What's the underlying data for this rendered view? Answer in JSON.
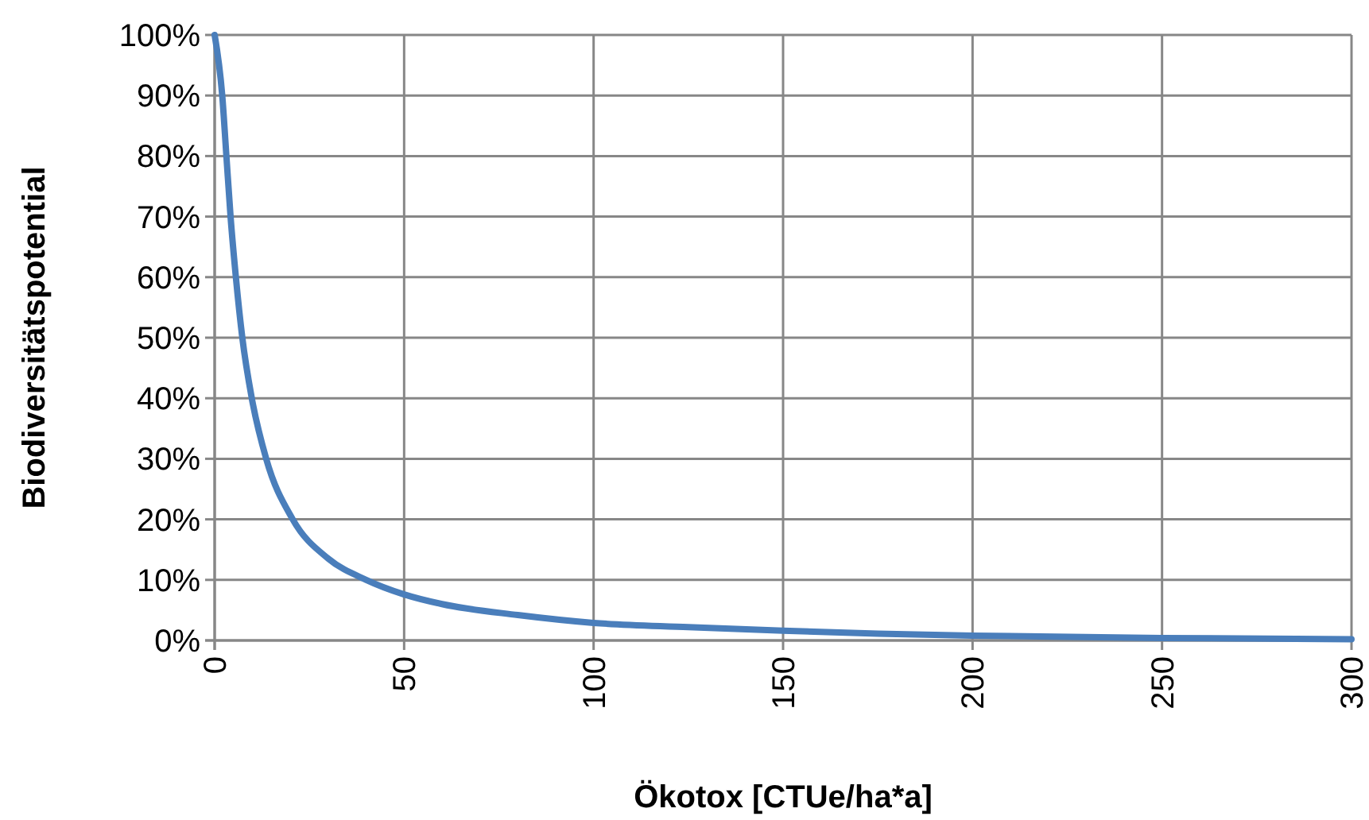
{
  "chart_data": {
    "type": "line",
    "xlabel": "Ökotox [CTUe/ha*a]",
    "ylabel": "Biodiversitätspotential",
    "x": [
      0,
      2,
      3.1,
      4.2,
      5.6,
      7.3,
      9.8,
      13.6,
      20.6,
      30,
      40,
      50,
      60,
      80,
      100,
      125,
      150,
      175,
      200,
      250,
      300
    ],
    "series": [
      {
        "color": "#4a7ebb",
        "values": [
          100,
          90,
          80,
          70,
          60,
          50,
          40,
          30,
          20,
          13.5,
          10,
          7.6,
          6,
          4.2,
          2.9,
          2.2,
          1.6,
          1.1,
          0.8,
          0.4,
          0.2
        ]
      }
    ],
    "xlim": [
      0,
      300
    ],
    "xticks": [
      0,
      50,
      100,
      150,
      200,
      250,
      300
    ],
    "ylim": [
      0,
      100
    ],
    "yticks": [
      {
        "value": 0,
        "label": "0%"
      },
      {
        "value": 10,
        "label": "10%"
      },
      {
        "value": 20,
        "label": "20%"
      },
      {
        "value": 30,
        "label": "30%"
      },
      {
        "value": 40,
        "label": "40%"
      },
      {
        "value": 50,
        "label": "50%"
      },
      {
        "value": 60,
        "label": "60%"
      },
      {
        "value": 70,
        "label": "70%"
      },
      {
        "value": 80,
        "label": "80%"
      },
      {
        "value": 90,
        "label": "90%"
      },
      {
        "value": 100,
        "label": "100%"
      }
    ],
    "grid": true,
    "marker": "none",
    "line_style": "solid"
  }
}
